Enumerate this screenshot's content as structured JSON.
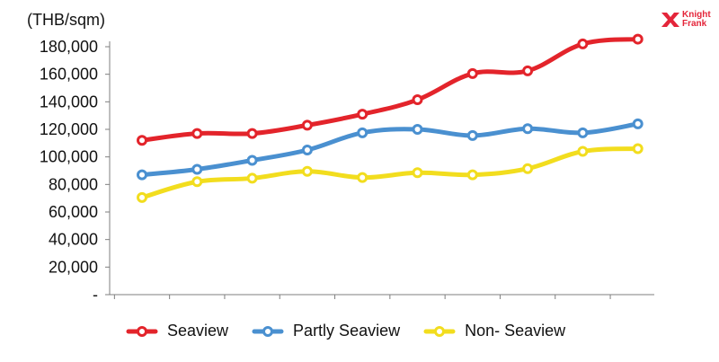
{
  "logo": {
    "line1": "Knight",
    "line2": "Frank",
    "color": "#e4253a"
  },
  "chart_data": {
    "type": "line",
    "ylabel": "(THB/sqm)",
    "ylim": [
      0,
      180000
    ],
    "yticks": [
      {
        "value": 0,
        "label": "-"
      },
      {
        "value": 20000,
        "label": "20,000"
      },
      {
        "value": 40000,
        "label": "40,000"
      },
      {
        "value": 60000,
        "label": "60,000"
      },
      {
        "value": 80000,
        "label": "80,000"
      },
      {
        "value": 100000,
        "label": "100,000"
      },
      {
        "value": 120000,
        "label": "120,000"
      },
      {
        "value": 140000,
        "label": "140,000"
      },
      {
        "value": 160000,
        "label": "160,000"
      },
      {
        "value": 180000,
        "label": "180,000"
      }
    ],
    "x": [
      1,
      2,
      3,
      4,
      5,
      6,
      7,
      8,
      9,
      10
    ],
    "grid": false,
    "legend_position": "bottom",
    "series": [
      {
        "name": "Seaview",
        "color": "#e3242b",
        "values": [
          112000,
          117000,
          117000,
          123000,
          131000,
          141500,
          160500,
          162500,
          182000,
          185500
        ]
      },
      {
        "name": "Partly Seaview",
        "color": "#4a90d0",
        "values": [
          87000,
          91000,
          97500,
          105000,
          117500,
          120000,
          115500,
          120500,
          117500,
          124000
        ]
      },
      {
        "name": "Non- Seaview",
        "color": "#f2dd1e",
        "values": [
          70500,
          82000,
          84500,
          89500,
          85000,
          88500,
          87000,
          91500,
          104000,
          106000
        ]
      }
    ]
  }
}
